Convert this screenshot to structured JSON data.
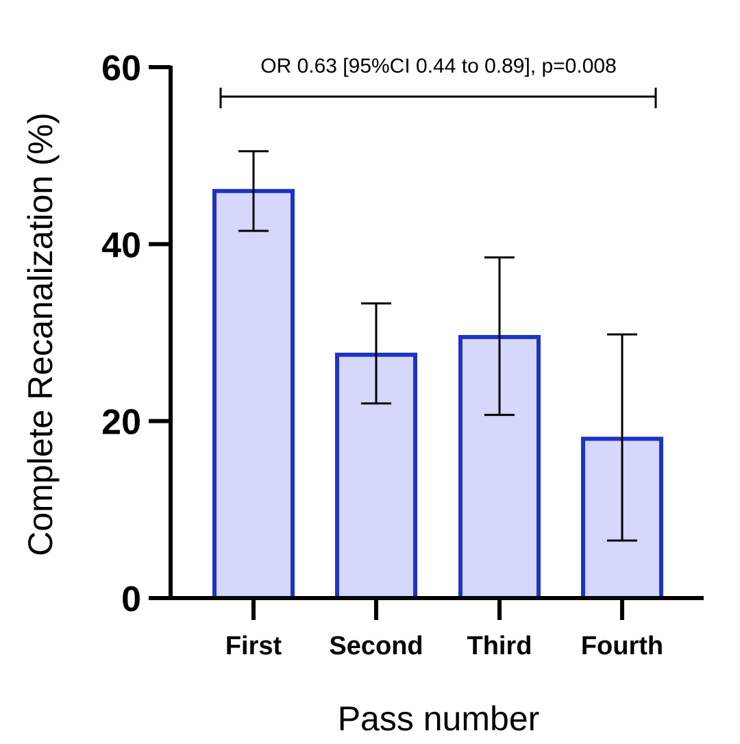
{
  "chart_data": {
    "type": "bar",
    "categories": [
      "First",
      "Second",
      "Third",
      "Fourth"
    ],
    "values": [
      46,
      27.5,
      29.5,
      18
    ],
    "error_low": [
      41.5,
      22,
      20.7,
      6.5
    ],
    "error_high": [
      50.5,
      33.3,
      38.5,
      29.8
    ],
    "xlabel": "Pass number",
    "ylabel": "Complete Recanalization (%)",
    "ylim": [
      0,
      60
    ],
    "yticks": [
      0,
      20,
      40,
      60
    ],
    "grid": false,
    "colors": {
      "bar_fill": "#d5d7fb",
      "bar_edge": "#1f33c4",
      "axis": "#000000"
    },
    "annotation": {
      "text": "OR 0.63 [95%CI 0.44 to 0.89], p=0.008",
      "from_category": "First",
      "to_category": "Fourth"
    }
  }
}
